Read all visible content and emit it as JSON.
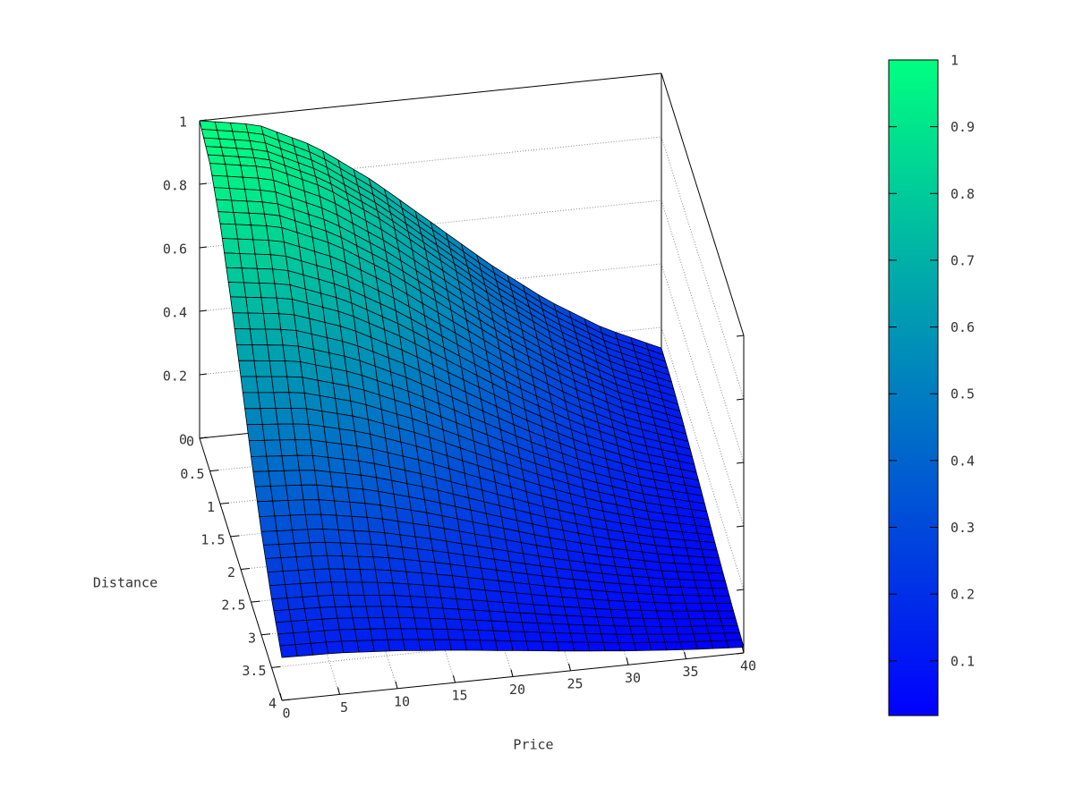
{
  "chart_data": {
    "type": "surface3d",
    "title": "",
    "xlabel": "Price",
    "ylabel": "Distance",
    "zlabel": "",
    "x": [
      0,
      5,
      10,
      15,
      20,
      25,
      30,
      35,
      40
    ],
    "y": [
      0,
      0.5,
      1,
      1.5,
      2,
      2.5,
      3,
      3.5,
      4
    ],
    "z": [
      [
        1.0,
        0.969,
        0.882,
        0.755,
        0.607,
        0.458,
        0.325,
        0.216,
        0.135
      ],
      [
        0.969,
        0.939,
        0.855,
        0.732,
        0.588,
        0.444,
        0.315,
        0.209,
        0.131
      ],
      [
        0.882,
        0.855,
        0.778,
        0.666,
        0.535,
        0.404,
        0.287,
        0.191,
        0.119
      ],
      [
        0.755,
        0.732,
        0.666,
        0.57,
        0.458,
        0.346,
        0.245,
        0.163,
        0.102
      ],
      [
        0.607,
        0.588,
        0.535,
        0.458,
        0.368,
        0.278,
        0.197,
        0.131,
        0.082
      ],
      [
        0.458,
        0.444,
        0.404,
        0.346,
        0.278,
        0.21,
        0.149,
        0.099,
        0.062
      ],
      [
        0.325,
        0.315,
        0.287,
        0.245,
        0.197,
        0.149,
        0.106,
        0.07,
        0.044
      ],
      [
        0.216,
        0.209,
        0.191,
        0.163,
        0.131,
        0.099,
        0.07,
        0.047,
        0.029
      ],
      [
        0.135,
        0.131,
        0.119,
        0.102,
        0.082,
        0.062,
        0.044,
        0.029,
        0.018
      ]
    ],
    "xlim": [
      0,
      40
    ],
    "ylim": [
      0,
      4
    ],
    "zlim": [
      0,
      1
    ],
    "x_ticks": [
      "0",
      "5",
      "10",
      "15",
      "20",
      "25",
      "30",
      "35",
      "40"
    ],
    "y_ticks": [
      "0",
      "0.5",
      "1",
      "1.5",
      "2",
      "2.5",
      "3",
      "3.5",
      "4"
    ],
    "z_ticks": [
      "0",
      "0.2",
      "0.4",
      "0.6",
      "0.8",
      "1"
    ],
    "colorbar": {
      "range": [
        0.018,
        1
      ],
      "ticks": [
        "0.1",
        "0.2",
        "0.3",
        "0.4",
        "0.5",
        "0.6",
        "0.7",
        "0.8",
        "0.9",
        "1"
      ],
      "palette_low": "#0000ff",
      "palette_high": "#00ff80",
      "placement": "right"
    },
    "grid": true,
    "mesh_lines": true
  }
}
